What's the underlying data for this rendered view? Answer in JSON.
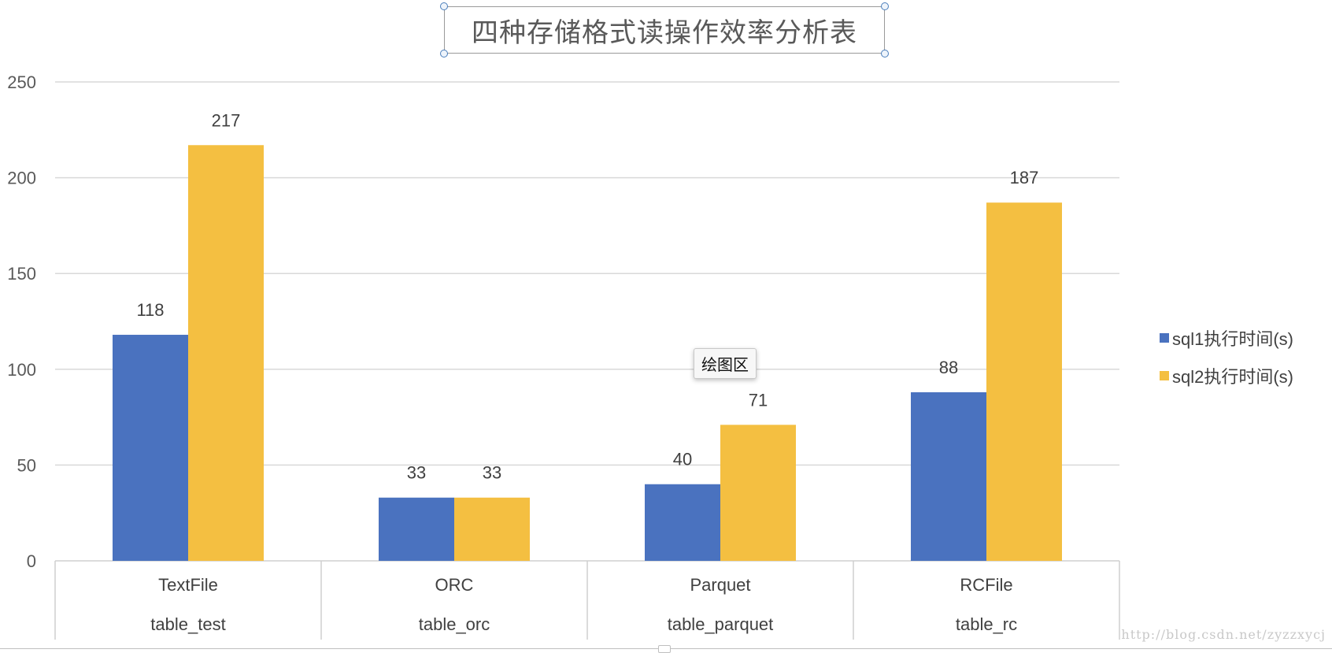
{
  "chart_data": {
    "type": "bar",
    "title": "四种存储格式读操作效率分析表",
    "categories": [
      "TextFile",
      "ORC",
      "Parquet",
      "RCFile"
    ],
    "subcategories": [
      "table_test",
      "table_orc",
      "table_parquet",
      "table_rc"
    ],
    "series": [
      {
        "name": "sql1执行时间(s)",
        "values": [
          118,
          33,
          40,
          88
        ],
        "color": "#4a72bf"
      },
      {
        "name": "sql2执行时间(s)",
        "values": [
          217,
          33,
          71,
          187
        ],
        "color": "#f4bf41"
      }
    ],
    "ylim": [
      0,
      250
    ],
    "yticks": [
      0,
      50,
      100,
      150,
      200,
      250
    ],
    "xlabel": "",
    "ylabel": "",
    "grid": true,
    "legend_position": "right"
  },
  "tooltip": {
    "text": "绘图区"
  },
  "watermark": {
    "text": "http://blog.csdn.net/zyzzxycj"
  }
}
